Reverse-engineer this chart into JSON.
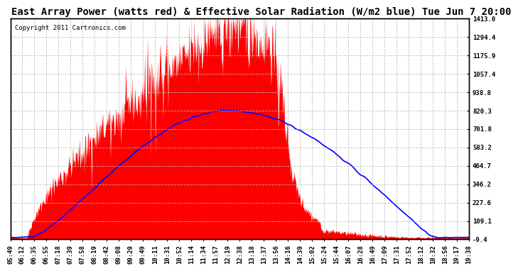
{
  "title": "East Array Power (watts red) & Effective Solar Radiation (W/m2 blue) Tue Jun 7 20:00",
  "copyright": "Copyright 2011 Cartronics.com",
  "ymin": -9.4,
  "ymax": 1413.0,
  "yticks": [
    1413.0,
    1294.4,
    1175.9,
    1057.4,
    938.8,
    820.3,
    701.8,
    583.2,
    464.7,
    346.2,
    227.6,
    109.1,
    -9.4
  ],
  "background_color": "#ffffff",
  "grid_color": "#bbbbbb",
  "red_color": "#ff0000",
  "blue_color": "#0000ff",
  "x_labels": [
    "05:49",
    "06:12",
    "06:35",
    "06:55",
    "07:18",
    "07:39",
    "07:58",
    "08:19",
    "08:42",
    "09:08",
    "09:29",
    "09:49",
    "10:11",
    "10:31",
    "10:52",
    "11:14",
    "11:34",
    "11:57",
    "12:19",
    "12:38",
    "13:18",
    "13:37",
    "13:56",
    "14:16",
    "14:39",
    "15:02",
    "15:24",
    "15:44",
    "16:07",
    "16:28",
    "16:49",
    "17:09",
    "17:31",
    "17:52",
    "18:12",
    "18:32",
    "18:56",
    "19:17",
    "19:38"
  ],
  "title_fontsize": 10,
  "tick_fontsize": 6.5,
  "copyright_fontsize": 6.5
}
